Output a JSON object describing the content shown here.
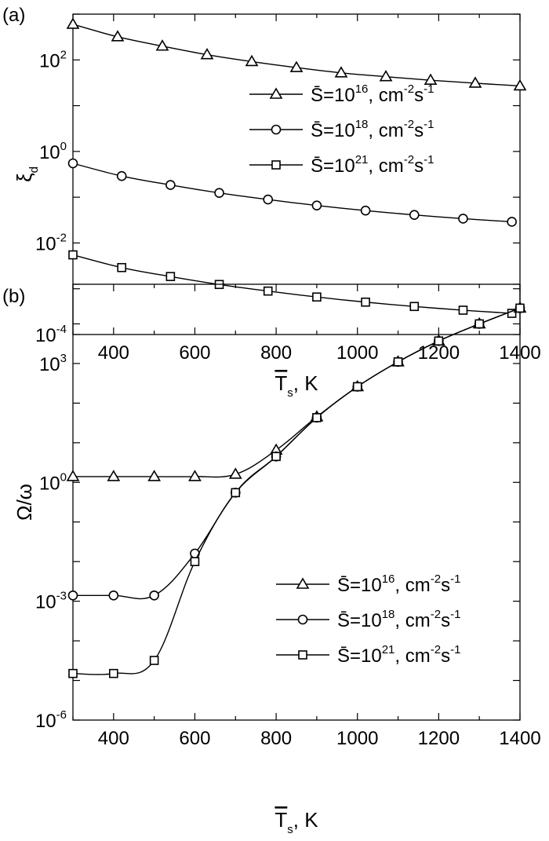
{
  "chart_data": [
    {
      "panel_label": "(a)",
      "type": "line",
      "xlabel": "T̄s, K",
      "xlabel_main": "T",
      "xlabel_sub": "s",
      "xlabel_rest": ", K",
      "ylabel": "ξd",
      "ylabel_main": "ξ",
      "ylabel_sub": "d",
      "yscale": "log",
      "xlim": [
        300,
        1400
      ],
      "ylim": [
        0.0001,
        1000
      ],
      "xticks": [
        "400",
        "600",
        "800",
        "1000",
        "1200",
        "1400"
      ],
      "xtick_values": [
        400,
        600,
        800,
        1000,
        1200,
        1400
      ],
      "yticks": [
        {
          "value": 0.0001,
          "base": "10",
          "exp": "-4"
        },
        {
          "value": 0.01,
          "base": "10",
          "exp": "-2"
        },
        {
          "value": 1,
          "base": "10",
          "exp": "0"
        },
        {
          "value": 100,
          "base": "10",
          "exp": "2"
        }
      ],
      "legend_position": "upper-right",
      "series": [
        {
          "name": "S̄=10^16, cm^-2s^-1",
          "label_pre": "S̄=10",
          "label_exp1": "16",
          "label_mid": ", cm",
          "label_exp2": "-2",
          "label_s": "s",
          "label_exp3": "-1",
          "marker": "triangle",
          "x": [
            300,
            410,
            520,
            630,
            740,
            850,
            960,
            1070,
            1180,
            1290,
            1400
          ],
          "y": [
            600,
            320,
            200,
            130,
            92,
            68,
            52,
            43,
            36,
            31,
            27
          ]
        },
        {
          "name": "S̄=10^18, cm^-2s^-1",
          "label_pre": "S̄=10",
          "label_exp1": "18",
          "label_mid": ", cm",
          "label_exp2": "-2",
          "label_s": "s",
          "label_exp3": "-1",
          "marker": "circle",
          "x": [
            300,
            420,
            540,
            660,
            780,
            900,
            1020,
            1140,
            1260,
            1380
          ],
          "y": [
            0.55,
            0.29,
            0.185,
            0.124,
            0.089,
            0.066,
            0.051,
            0.041,
            0.034,
            0.029
          ]
        },
        {
          "name": "S̄=10^21, cm^-2s^-1",
          "label_pre": "S̄=10",
          "label_exp1": "21",
          "label_mid": ", cm",
          "label_exp2": "-2",
          "label_s": "s",
          "label_exp3": "-1",
          "marker": "square",
          "x": [
            300,
            420,
            540,
            660,
            780,
            900,
            1020,
            1140,
            1260,
            1380
          ],
          "y": [
            0.0055,
            0.0029,
            0.00185,
            0.00124,
            0.00089,
            0.00066,
            0.00051,
            0.00041,
            0.00034,
            0.00029
          ]
        }
      ]
    },
    {
      "panel_label": "(b)",
      "type": "line",
      "xlabel": "T̄s, K",
      "xlabel_main": "T",
      "xlabel_sub": "s",
      "xlabel_rest": ", K",
      "ylabel": "Ω̄/ω",
      "ylabel_main": "Ω/ω",
      "yscale": "log",
      "xlim": [
        300,
        1400
      ],
      "ylim": [
        1e-06,
        100000
      ],
      "xticks": [
        "400",
        "600",
        "800",
        "1000",
        "1200",
        "1400"
      ],
      "xtick_values": [
        400,
        600,
        800,
        1000,
        1200,
        1400
      ],
      "yticks": [
        {
          "value": 1e-06,
          "base": "10",
          "exp": "-6"
        },
        {
          "value": 0.001,
          "base": "10",
          "exp": "-3"
        },
        {
          "value": 1,
          "base": "10",
          "exp": "0"
        },
        {
          "value": 1000,
          "base": "10",
          "exp": "3"
        }
      ],
      "legend_position": "center-right",
      "series": [
        {
          "name": "S̄=10^16, cm^-2s^-1",
          "label_pre": "S̄=10",
          "label_exp1": "16",
          "label_mid": ", cm",
          "label_exp2": "-2",
          "label_s": "s",
          "label_exp3": "-1",
          "marker": "triangle",
          "x": [
            300,
            400,
            500,
            600,
            700,
            800,
            900,
            1000,
            1100,
            1200,
            1300,
            1400
          ],
          "y": [
            1.4,
            1.4,
            1.4,
            1.4,
            1.6,
            6.5,
            45,
            260,
            1100,
            3700,
            10000,
            25000
          ]
        },
        {
          "name": "S̄=10^18, cm^-2s^-1",
          "label_pre": "S̄=10",
          "label_exp1": "18",
          "label_mid": ", cm",
          "label_exp2": "-2",
          "label_s": "s",
          "label_exp3": "-1",
          "marker": "circle",
          "x": [
            300,
            400,
            500,
            600,
            700,
            800,
            900,
            1000,
            1100,
            1200,
            1300,
            1400
          ],
          "y": [
            0.0014,
            0.0014,
            0.0014,
            0.016,
            0.55,
            4.5,
            43,
            260,
            1100,
            3700,
            10000,
            25000
          ]
        },
        {
          "name": "S̄=10^21, cm^-2s^-1",
          "label_pre": "S̄=10",
          "label_exp1": "21",
          "label_mid": ", cm",
          "label_exp2": "-2",
          "label_s": "s",
          "label_exp3": "-1",
          "marker": "square",
          "x": [
            300,
            400,
            500,
            600,
            700,
            800,
            900,
            1000,
            1100,
            1200,
            1300,
            1400
          ],
          "y": [
            1.5e-05,
            1.5e-05,
            3.2e-05,
            0.01,
            0.55,
            4.5,
            43,
            260,
            1100,
            3700,
            10000,
            25000
          ]
        }
      ]
    }
  ]
}
